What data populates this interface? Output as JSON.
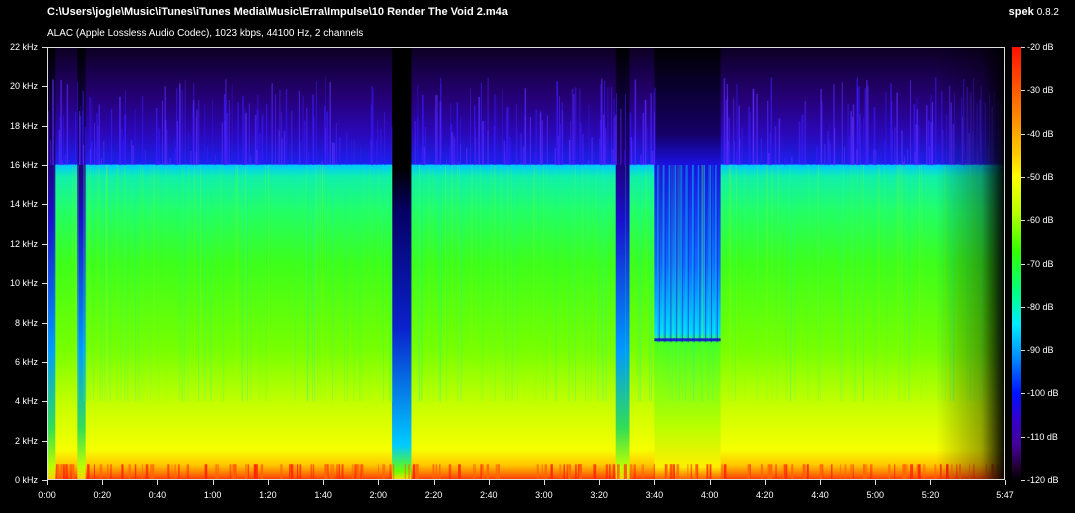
{
  "header": {
    "file_path": "C:\\Users\\jogle\\Music\\iTunes\\iTunes Media\\Music\\Erra\\Impulse\\10 Render The Void 2.m4a",
    "audio_info": "ALAC (Apple Lossless Audio Codec), 1023 kbps, 44100 Hz, 2 channels",
    "app_name": "spek",
    "app_version": "0.8.2"
  },
  "frequency_axis": {
    "unit": "kHz",
    "labels": [
      "22 kHz",
      "20 kHz",
      "18 kHz",
      "16 kHz",
      "14 kHz",
      "12 kHz",
      "10 kHz",
      "8 kHz",
      "6 kHz",
      "4 kHz",
      "2 kHz",
      "0 kHz"
    ],
    "max_khz": 22
  },
  "time_axis": {
    "labels": [
      "0:00",
      "0:20",
      "0:40",
      "1:00",
      "1:20",
      "1:40",
      "2:00",
      "2:20",
      "2:40",
      "3:00",
      "3:20",
      "3:40",
      "4:00",
      "4:20",
      "4:40",
      "5:00",
      "5:20",
      "5:47"
    ],
    "duration_seconds": 347
  },
  "db_scale": {
    "labels": [
      "-20 dB",
      "-30 dB",
      "-40 dB",
      "-50 dB",
      "-60 dB",
      "-70 dB",
      "-80 dB",
      "-90 dB",
      "-100 dB",
      "-110 dB",
      "-120 dB"
    ],
    "max_db": -20,
    "min_db": -120
  },
  "colors": {
    "background": "#000000",
    "text": "#ffffff",
    "loud": "#ff2200",
    "mid_high": "#ffff00",
    "mid": "#33ff00",
    "mid_low": "#00eeff",
    "low": "#0011ff",
    "quiet": "#330088"
  }
}
